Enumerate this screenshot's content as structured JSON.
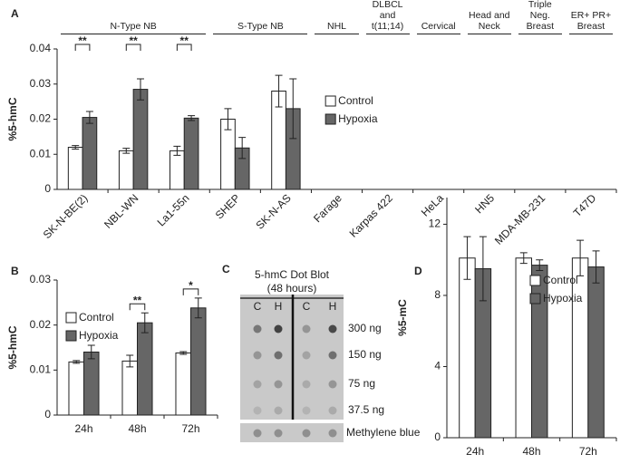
{
  "chart_data": [
    {
      "type": "bar",
      "panel_label": "A",
      "ylabel": "%5-hmC",
      "categories": [
        "SK-N-BE(2)",
        "NBL-WN",
        "La1-55n",
        "SHEP",
        "SK-N-AS",
        "Farage",
        "Karpas 422",
        "HeLa",
        "HN5",
        "MDA-MB-231",
        "T47D"
      ],
      "groups": [
        {
          "name": "N-Type NB",
          "categories": [
            "SK-N-BE(2)",
            "NBL-WN",
            "La1-55n"
          ]
        },
        {
          "name": "S-Type NB",
          "categories": [
            "SHEP",
            "SK-N-AS"
          ]
        },
        {
          "name": "NHL",
          "categories": [
            "Farage"
          ]
        },
        {
          "name": "DLBCL and t(11;14)",
          "categories": [
            "Karpas 422"
          ]
        },
        {
          "name": "Cervical",
          "categories": [
            "HeLa"
          ]
        },
        {
          "name": "Head and Neck",
          "categories": [
            "HN5"
          ]
        },
        {
          "name": "Triple Neg. Breast",
          "categories": [
            "MDA-MB-231"
          ]
        },
        {
          "name": "ER+ PR+ Breast",
          "categories": [
            "T47D"
          ]
        }
      ],
      "series": [
        {
          "name": "Control",
          "color": "#ffffff",
          "values": [
            0.012,
            0.011,
            0.011,
            0.02,
            0.028,
            0,
            0,
            0,
            0,
            0,
            0
          ],
          "errors": [
            0.0005,
            0.0007,
            0.0013,
            0.003,
            0.0045,
            0,
            0,
            0,
            0,
            0,
            0
          ]
        },
        {
          "name": "Hypoxia",
          "color": "#666666",
          "values": [
            0.0205,
            0.0285,
            0.0203,
            0.0118,
            0.023,
            0,
            0,
            0,
            0,
            0,
            0
          ],
          "errors": [
            0.0017,
            0.003,
            0.0007,
            0.003,
            0.0085,
            0,
            0,
            0,
            0,
            0,
            0
          ]
        }
      ],
      "significance": [
        "**",
        "**",
        "**",
        null,
        null,
        null,
        null,
        null,
        null,
        null,
        null
      ],
      "ylim": [
        0,
        0.04
      ],
      "yticks": [
        0,
        0.01,
        0.02,
        0.03,
        0.04
      ],
      "xtick_rotation": -45,
      "legend": "center"
    },
    {
      "type": "bar",
      "panel_label": "B",
      "ylabel": "%5-hmC",
      "categories": [
        "24h",
        "48h",
        "72h"
      ],
      "series": [
        {
          "name": "Control",
          "color": "#ffffff",
          "values": [
            0.0118,
            0.012,
            0.0138
          ],
          "errors": [
            0.0003,
            0.0013,
            0.0003
          ]
        },
        {
          "name": "Hypoxia",
          "color": "#666666",
          "values": [
            0.014,
            0.0205,
            0.0238
          ],
          "errors": [
            0.0015,
            0.0022,
            0.0022
          ]
        }
      ],
      "significance": [
        null,
        "**",
        "*"
      ],
      "ylim": [
        0,
        0.03
      ],
      "yticks": [
        0,
        0.01,
        0.02,
        0.03
      ],
      "xtick_rotation": 0,
      "legend": "upper left"
    },
    {
      "type": "bar",
      "panel_label": "D",
      "ylabel": "%5-mC",
      "categories": [
        "24h",
        "48h",
        "72h"
      ],
      "series": [
        {
          "name": "Control",
          "color": "#ffffff",
          "values": [
            10.1,
            10.1,
            10.1
          ],
          "errors": [
            1.2,
            0.3,
            1.0
          ]
        },
        {
          "name": "Hypoxia",
          "color": "#666666",
          "values": [
            9.5,
            9.7,
            9.6
          ],
          "errors": [
            1.8,
            0.3,
            0.9
          ]
        }
      ],
      "ylim": [
        0,
        13.5
      ],
      "yticks": [
        0,
        4,
        8,
        12
      ],
      "xtick_rotation": 0,
      "legend": "upper right"
    }
  ],
  "blot": {
    "panel_label": "C",
    "title": "5-hmC Dot Blot",
    "subtitle": "(48 hours)",
    "columns": [
      "C",
      "H",
      "C",
      "H"
    ],
    "rows": [
      "300 ng",
      "150 ng",
      "75 ng",
      "37.5 ng"
    ],
    "stain": "Methylene blue"
  }
}
